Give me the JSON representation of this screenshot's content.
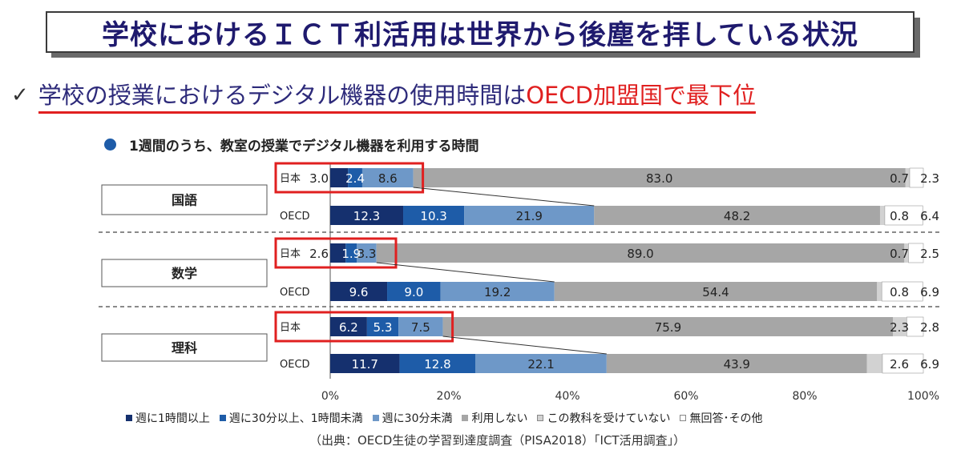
{
  "title": "学校におけるＩＣＴ利活用は世界から後塵を拝している状況",
  "subtitle": {
    "check": "✓",
    "text_main": "学校の授業におけるデジタル機器の使用時間は",
    "text_highlight": "OECD加盟国で最下位",
    "highlight_color": "#e02020"
  },
  "chart_heading": "1週間のうち、教室の授業でデジタル機器を利用する時間",
  "chart_data": {
    "type": "bar",
    "orientation": "horizontal",
    "stacked": true,
    "xlim": [
      0,
      100
    ],
    "x_ticks": [
      "0%",
      "20%",
      "40%",
      "60%",
      "80%",
      "100%"
    ],
    "subjects": [
      {
        "name": "国語",
        "rows": [
          {
            "label": "日本",
            "values": [
              3.0,
              2.4,
              8.6,
              83.0,
              0.7,
              2.3
            ],
            "highlight": true
          },
          {
            "label": "OECD",
            "values": [
              12.3,
              10.3,
              21.9,
              48.2,
              0.8,
              6.4
            ],
            "highlight": false
          }
        ]
      },
      {
        "name": "数学",
        "rows": [
          {
            "label": "日本",
            "values": [
              2.6,
              1.9,
              3.3,
              89.0,
              0.7,
              2.5
            ],
            "highlight": true
          },
          {
            "label": "OECD",
            "values": [
              9.6,
              9.0,
              19.2,
              54.4,
              0.8,
              6.9
            ],
            "highlight": false
          }
        ]
      },
      {
        "name": "理科",
        "rows": [
          {
            "label": "日本",
            "values": [
              6.2,
              5.3,
              7.5,
              75.9,
              2.3,
              2.8
            ],
            "highlight": true
          },
          {
            "label": "OECD",
            "values": [
              11.7,
              12.8,
              22.1,
              43.9,
              2.6,
              6.9
            ],
            "highlight": false
          }
        ]
      }
    ],
    "series": [
      {
        "name": "週に1時間以上",
        "color": "#15306e"
      },
      {
        "name": "週に30分以上、1時間未満",
        "color": "#1e5ca8"
      },
      {
        "name": "週に30分未満",
        "color": "#6e98c8"
      },
      {
        "name": "利用しない",
        "color": "#a6a6a6"
      },
      {
        "name": "この教科を受けていない",
        "color": "#d2d2d2"
      },
      {
        "name": "無回答･その他",
        "color": "#ffffff"
      }
    ],
    "highlight_color": "#e02020"
  },
  "source": "（出典：OECD生徒の学習到達度調査（PISA2018）「ICT活用調査」）"
}
